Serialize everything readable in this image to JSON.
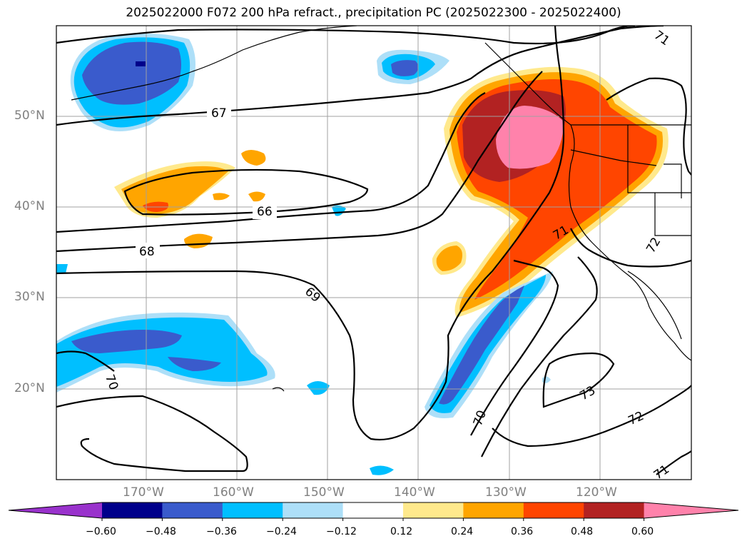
{
  "title": "2025022000 F072 200 hPa refract., precipitation PC (2025022300 - 2025022400)",
  "lat_labels": [
    "50°N",
    "40°N",
    "30°N",
    "20°N"
  ],
  "lon_labels": [
    "170°W",
    "160°W",
    "150°W",
    "140°W",
    "130°W",
    "120°W"
  ],
  "contour_labels": [
    "67",
    "66",
    "68",
    "69",
    "70",
    "70",
    "71",
    "71",
    "71",
    "72",
    "72",
    "73"
  ],
  "colorbar": {
    "ticks": [
      "−0.60",
      "−0.48",
      "−0.36",
      "−0.24",
      "−0.12",
      "0.12",
      "0.24",
      "0.36",
      "0.48",
      "0.60"
    ],
    "colors": [
      "#9932CC",
      "#00008B",
      "#3A5BCC",
      "#00BFFF",
      "#ADDFF8",
      "#FFFFFF",
      "#FFE98C",
      "#FFA500",
      "#FF4500",
      "#B22222",
      "#FF82AB"
    ]
  }
}
